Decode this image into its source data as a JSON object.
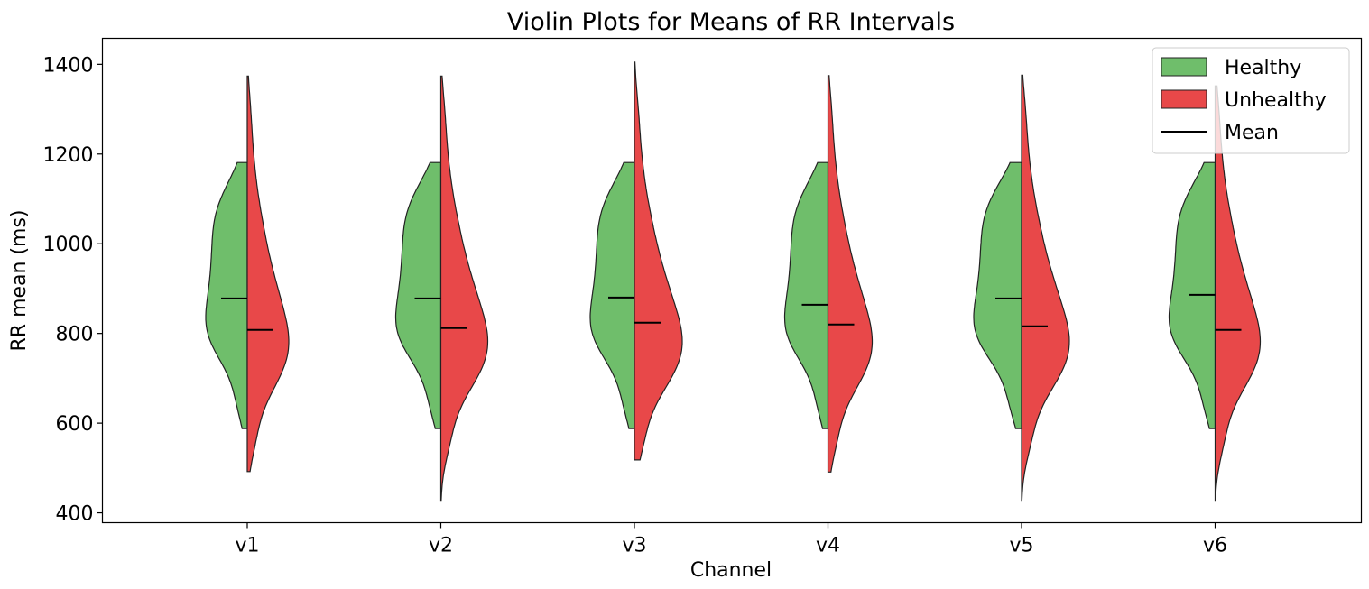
{
  "chart_data": {
    "type": "violin",
    "title": "Violin Plots for Means of RR Intervals",
    "xlabel": "Channel",
    "ylabel": "RR mean (ms)",
    "ylim": [
      378,
      1458
    ],
    "yticks": [
      400,
      600,
      800,
      1000,
      1200,
      1400
    ],
    "categories": [
      "v1",
      "v2",
      "v3",
      "v4",
      "v5",
      "v6"
    ],
    "legend_position": "top-right",
    "grid": false,
    "colors": {
      "Healthy": "#6fbe6b",
      "Unhealthy": "#e84849",
      "edge": "#222222",
      "mean": "#000000"
    },
    "legend": [
      {
        "label": "Healthy",
        "kind": "patch",
        "color": "#6fbe6b"
      },
      {
        "label": "Unhealthy",
        "kind": "patch",
        "color": "#e84849"
      },
      {
        "label": "Mean",
        "kind": "line",
        "color": "#000000"
      }
    ],
    "series": [
      {
        "name": "Healthy",
        "side": "left",
        "min": [
          588,
          588,
          588,
          588,
          588,
          588
        ],
        "max": [
          1181,
          1181,
          1181,
          1181,
          1181,
          1181
        ],
        "mean": [
          878,
          878,
          880,
          864,
          878,
          886
        ]
      },
      {
        "name": "Unhealthy",
        "side": "right",
        "min": [
          492,
          428,
          518,
          491,
          428,
          428
        ],
        "max": [
          1374,
          1374,
          1405,
          1375,
          1376,
          1352
        ],
        "mean": [
          808,
          812,
          824,
          820,
          816,
          808
        ]
      }
    ]
  }
}
